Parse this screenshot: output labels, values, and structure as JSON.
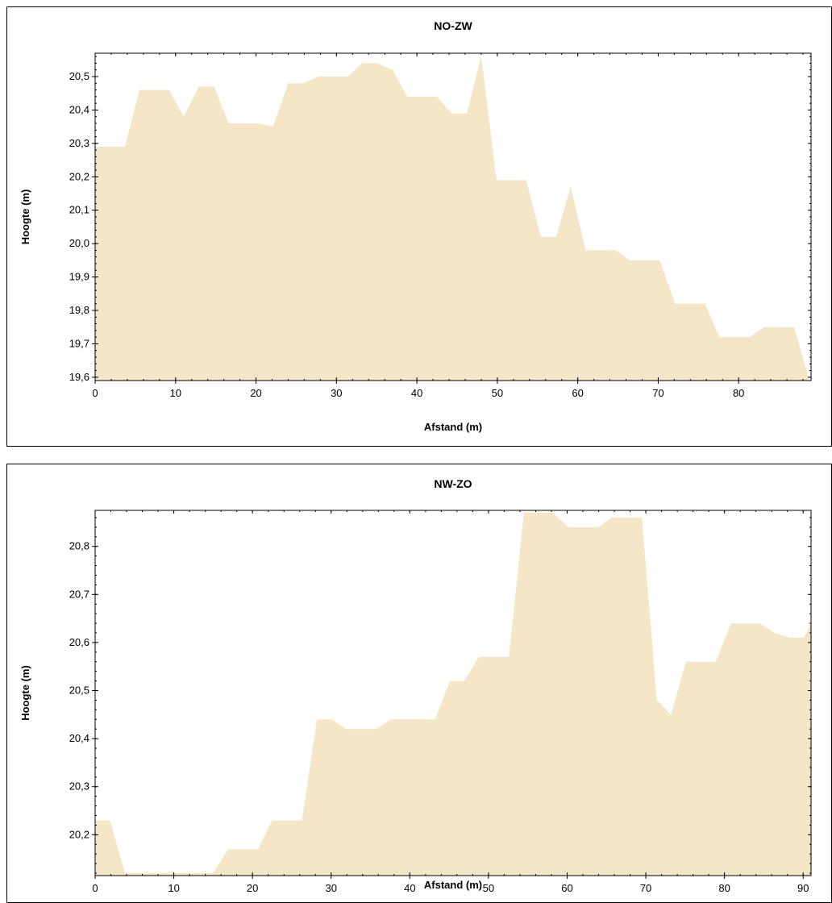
{
  "chart_data": [
    {
      "type": "area",
      "title": "NO-ZW",
      "xlabel": "Afstand (m)",
      "ylabel": "Hoogte (m)",
      "xlim": [
        0,
        89
      ],
      "ylim": [
        19.59,
        20.57
      ],
      "xticks": [
        "0",
        "10",
        "20",
        "30",
        "40",
        "50",
        "60",
        "70",
        "80"
      ],
      "yticks": [
        "19,6",
        "19,7",
        "19,8",
        "19,9",
        "20,0",
        "20,1",
        "20,2",
        "20,3",
        "20,4",
        "20,5"
      ],
      "grid": false,
      "fill_color": "#f5e6c8",
      "series": [
        {
          "x": [
            0,
            3.7,
            5.5,
            9.2,
            11,
            12.9,
            14.8,
            16.6,
            20.3,
            22.1,
            24,
            25.9,
            27.7,
            31.4,
            33.2,
            35.1,
            37,
            38.8,
            42.5,
            44.3,
            46.2,
            48,
            49.9,
            53.6,
            55.4,
            57.3,
            59.1,
            61,
            64.7,
            66.5,
            68.4,
            70.2,
            72.1,
            75.8,
            77.6,
            79.5,
            81.3,
            83.2,
            86.9,
            88.7
          ],
          "y": [
            20.29,
            20.29,
            20.46,
            20.46,
            20.38,
            20.47,
            20.47,
            20.36,
            20.36,
            20.35,
            20.48,
            20.48,
            20.5,
            20.5,
            20.54,
            20.54,
            20.52,
            20.44,
            20.44,
            20.39,
            20.39,
            20.56,
            20.19,
            20.19,
            20.02,
            20.02,
            20.17,
            19.98,
            19.98,
            19.95,
            19.95,
            19.95,
            19.82,
            19.82,
            19.72,
            19.72,
            19.72,
            19.75,
            19.75,
            19.6
          ]
        }
      ]
    },
    {
      "type": "area",
      "title": "NW-ZO",
      "xlabel": "Afstand (m)",
      "ylabel": "Hoogte (m)",
      "xlim": [
        0,
        91
      ],
      "ylim": [
        20.115,
        20.875
      ],
      "xticks": [
        "0",
        "10",
        "20",
        "30",
        "40",
        "50",
        "60",
        "70",
        "80",
        "90"
      ],
      "yticks": [
        "20,2",
        "20,3",
        "20,4",
        "20,5",
        "20,6",
        "20,7",
        "20,8"
      ],
      "grid": false,
      "fill_color": "#f5e6c8",
      "series": [
        {
          "x": [
            0,
            1.9,
            3.8,
            5.6,
            9.4,
            11.3,
            13.2,
            15,
            16.9,
            20.7,
            22.5,
            26.3,
            28.2,
            30.1,
            31.9,
            35.7,
            37.6,
            39.5,
            41.3,
            43.2,
            45.1,
            46.9,
            48.8,
            52.6,
            54.5,
            56.3,
            58.2,
            60.1,
            63.9,
            65.7,
            67.6,
            69.5,
            71.4,
            73.2,
            75.1,
            78.9,
            80.8,
            82.7,
            84.5,
            86.4,
            88.3,
            90.1,
            91
          ],
          "y": [
            20.23,
            20.23,
            20.12,
            20.12,
            20.12,
            20.12,
            20.12,
            20.12,
            20.17,
            20.17,
            20.23,
            20.23,
            20.44,
            20.44,
            20.42,
            20.42,
            20.44,
            20.44,
            20.44,
            20.44,
            20.52,
            20.52,
            20.57,
            20.57,
            20.87,
            20.87,
            20.87,
            20.84,
            20.84,
            20.86,
            20.86,
            20.86,
            20.48,
            20.45,
            20.56,
            20.56,
            20.64,
            20.64,
            20.64,
            20.62,
            20.61,
            20.61,
            20.64
          ]
        }
      ]
    }
  ]
}
